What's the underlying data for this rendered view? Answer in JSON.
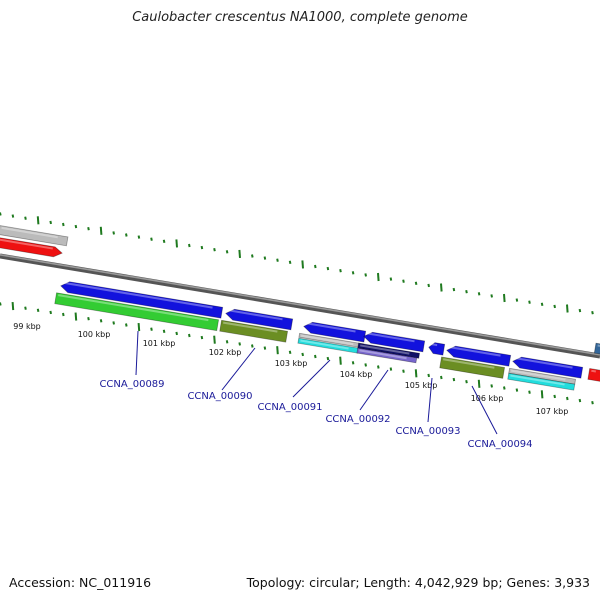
{
  "title": "Caulobacter crescentus NA1000, complete genome",
  "footer": {
    "accession": "Accession: NC_011916",
    "stats": "Topology: circular; Length: 4,042,929 bp; Genes: 3,933"
  },
  "colors": {
    "backbone": "#777777",
    "tick": "#1f7a1f",
    "label": "#1a1a99",
    "blue": "#1212dd",
    "red": "#ee1111",
    "green": "#33cc33",
    "olive": "#6b8e23",
    "gray": "#bbbbbb",
    "cyan": "#22dddd",
    "purple": "#7766cc",
    "navy": "#101066"
  },
  "scale": {
    "labels": [
      "99 kbp",
      "100 kbp",
      "101 kbp",
      "102 kbp",
      "103 kbp",
      "104 kbp",
      "105 kbp",
      "106 kbp",
      "107 kbp"
    ]
  },
  "gene_labels": [
    "CCNA_00089",
    "CCNA_00090",
    "CCNA_00091",
    "CCNA_00092",
    "CCNA_00093",
    "CCNA_00094"
  ]
}
